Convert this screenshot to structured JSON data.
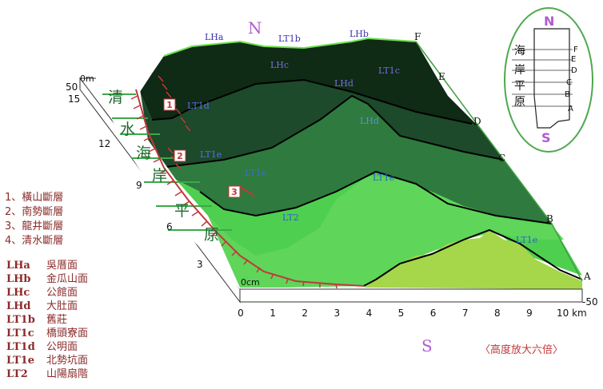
{
  "compass": {
    "north": "N",
    "south": "S"
  },
  "corner_labels": [
    "F",
    "E",
    "D",
    "C",
    "B",
    "A"
  ],
  "surface_labels": {
    "LHa": "LHa",
    "LT1b": "LT1b",
    "LHb": "LHb",
    "LHc": "LHc",
    "LT1c": "LT1c",
    "LHd": "LHd",
    "LT1d": "LT1d",
    "LT1e_a": "LT1e",
    "LHd_b": "LHd",
    "LT1e_b": "LT1e",
    "LT1e_c": "LT1e",
    "LT2": "LT2",
    "LT1e_d": "LT1e"
  },
  "faults_markers": [
    "1",
    "2",
    "3"
  ],
  "coast_chars": [
    "清",
    "水",
    "海",
    "岸",
    "平",
    "原"
  ],
  "vertical_scale": {
    "top_value": "50",
    "unit_top": "0m",
    "bottom_unit": "0cm",
    "right_value": "-50"
  },
  "left_scale_ticks": [
    "15",
    "12",
    "9",
    "6",
    "3"
  ],
  "x_axis": {
    "ticks": [
      "0",
      "1",
      "2",
      "3",
      "4",
      "5",
      "6",
      "7",
      "8",
      "9",
      "10 km"
    ]
  },
  "fault_legend": [
    "1、橫山斷層",
    "2、南勢斷層",
    "3、龍井斷層",
    "4、清水斷層"
  ],
  "surface_legend": [
    {
      "code": "LHa",
      "name": "吳厝面"
    },
    {
      "code": "LHb",
      "name": "金瓜山面"
    },
    {
      "code": "LHc",
      "name": "公館面"
    },
    {
      "code": "LHd",
      "name": "大肚面"
    },
    {
      "code": "LT1b",
      "name": "舊莊"
    },
    {
      "code": "LT1c",
      "name": "橋頭寮面"
    },
    {
      "code": "LT1d",
      "name": "公明面"
    },
    {
      "code": "LT1e",
      "name": "北勢坑面"
    },
    {
      "code": "LT2",
      "name": "山陽扇階"
    }
  ],
  "note": "〈高度放大六倍〉",
  "inset": {
    "north": "N",
    "south": "S",
    "chars": [
      "海",
      "岸",
      "平",
      "原"
    ],
    "letters": [
      "F",
      "E",
      "D",
      "C",
      "B",
      "A"
    ]
  },
  "colors": {
    "darkest": "#0f2a15",
    "dark": "#1c4a2a",
    "mid": "#2f7a3e",
    "light": "#4fcf4f",
    "lighter": "#6fd84f",
    "yellowgreen": "#a6d64a",
    "hatch": "#c0393b",
    "label_blue": "#3a2fb0",
    "legend_red": "#8b2b2b",
    "compass_purple": "#b25bd1"
  }
}
